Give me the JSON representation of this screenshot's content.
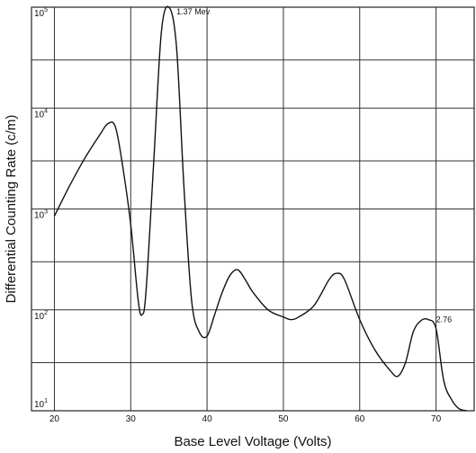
{
  "chart_data": {
    "type": "line",
    "xlabel": "Base Level Voltage (Volts)",
    "ylabel": "Differential Counting Rate (c/m)",
    "xlim": [
      17,
      75
    ],
    "ylog": true,
    "ylim": [
      10,
      100000
    ],
    "grid": true,
    "x_ticks": [
      20,
      30,
      40,
      50,
      60,
      70
    ],
    "x_tick_labels": [
      "20",
      "30",
      "40",
      "50",
      "60",
      "70"
    ],
    "y_ticks": [
      {
        "value": 10,
        "base": "10",
        "exp": "1"
      },
      {
        "value": 100,
        "base": "10",
        "exp": "2"
      },
      {
        "value": 1000,
        "base": "10",
        "exp": "3"
      },
      {
        "value": 10000,
        "base": "10",
        "exp": "4"
      },
      {
        "value": 100000,
        "base": "10",
        "exp": "5"
      }
    ],
    "series": [
      {
        "points": [
          [
            20,
            850
          ],
          [
            22,
            1700
          ],
          [
            24,
            3200
          ],
          [
            26,
            5500
          ],
          [
            27,
            7000
          ],
          [
            28,
            6500
          ],
          [
            29,
            2500
          ],
          [
            30,
            700
          ],
          [
            31,
            120
          ],
          [
            31.5,
            90
          ],
          [
            32,
            150
          ],
          [
            33,
            2800
          ],
          [
            34,
            55000
          ],
          [
            35,
            100000
          ],
          [
            36,
            40000
          ],
          [
            37,
            1500
          ],
          [
            38,
            120
          ],
          [
            39,
            60
          ],
          [
            40,
            55
          ],
          [
            41,
            90
          ],
          [
            42,
            150
          ],
          [
            43,
            220
          ],
          [
            44,
            250
          ],
          [
            45,
            200
          ],
          [
            46,
            150
          ],
          [
            48,
            100
          ],
          [
            50,
            85
          ],
          [
            51,
            80
          ],
          [
            52,
            85
          ],
          [
            54,
            110
          ],
          [
            56,
            200
          ],
          [
            57,
            230
          ],
          [
            58,
            200
          ],
          [
            60,
            80
          ],
          [
            62,
            40
          ],
          [
            64,
            25
          ],
          [
            65,
            22
          ],
          [
            66,
            30
          ],
          [
            67,
            60
          ],
          [
            68,
            78
          ],
          [
            69,
            80
          ],
          [
            70,
            65
          ],
          [
            71,
            20
          ],
          [
            72,
            13
          ],
          [
            73,
            10.5
          ],
          [
            74,
            10
          ]
        ]
      }
    ],
    "annotations": [
      {
        "text": "1.37 Mev",
        "x": 36,
        "y": 90000
      },
      {
        "text": "2.76",
        "x": 70,
        "y": 80
      }
    ]
  }
}
